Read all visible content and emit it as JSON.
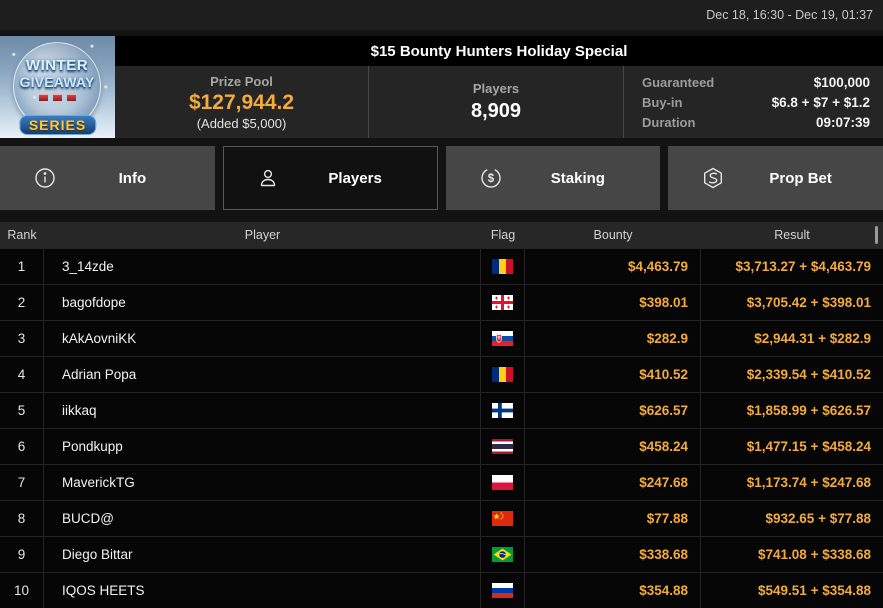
{
  "topbar": {
    "date_range": "Dec 18, 16:30 - Dec 19, 01:37"
  },
  "header": {
    "title": "$15 Bounty Hunters Holiday Special",
    "logo": {
      "line1": "WINTER",
      "line2": "GIVEAWAY",
      "line3": "SERIES"
    },
    "stats": {
      "prize_pool": {
        "label": "Prize Pool",
        "value": "$127,944.2",
        "added": "(Added $5,000)"
      },
      "players": {
        "label": "Players",
        "value": "8,909"
      },
      "details": [
        {
          "label": "Guaranteed",
          "value": "$100,000"
        },
        {
          "label": "Buy-in",
          "value": "$6.8 + $7 + $1.2"
        },
        {
          "label": "Duration",
          "value": "09:07:39"
        }
      ]
    }
  },
  "tabs": [
    {
      "label": "Info",
      "icon": "info-icon",
      "active": false
    },
    {
      "label": "Players",
      "icon": "players-icon",
      "active": true
    },
    {
      "label": "Staking",
      "icon": "staking-icon",
      "active": false
    },
    {
      "label": "Prop Bet",
      "icon": "prop-bet-icon",
      "active": false
    }
  ],
  "table": {
    "columns": [
      "Rank",
      "Player",
      "Flag",
      "Bounty",
      "Result"
    ],
    "rows": [
      {
        "rank": "1",
        "player": "3_14zde",
        "flag": "romania",
        "bounty": "$4,463.79",
        "result": "$3,713.27 + $4,463.79"
      },
      {
        "rank": "2",
        "player": "bagofdope",
        "flag": "georgia",
        "bounty": "$398.01",
        "result": "$3,705.42 + $398.01"
      },
      {
        "rank": "3",
        "player": "kAkAovniKK",
        "flag": "slovakia",
        "bounty": "$282.9",
        "result": "$2,944.31 + $282.9"
      },
      {
        "rank": "4",
        "player": "Adrian Popa",
        "flag": "romania",
        "bounty": "$410.52",
        "result": "$2,339.54 + $410.52"
      },
      {
        "rank": "5",
        "player": "iikkaq",
        "flag": "finland",
        "bounty": "$626.57",
        "result": "$1,858.99 + $626.57"
      },
      {
        "rank": "6",
        "player": "Pondkupp",
        "flag": "thailand",
        "bounty": "$458.24",
        "result": "$1,477.15 + $458.24"
      },
      {
        "rank": "7",
        "player": "MaverickTG",
        "flag": "poland",
        "bounty": "$247.68",
        "result": "$1,173.74 + $247.68"
      },
      {
        "rank": "8",
        "player": "BUCD@",
        "flag": "china",
        "bounty": "$77.88",
        "result": "$932.65 + $77.88"
      },
      {
        "rank": "9",
        "player": "Diego Bittar",
        "flag": "brazil",
        "bounty": "$338.68",
        "result": "$741.08 + $338.68"
      },
      {
        "rank": "10",
        "player": "IQOS HEETS",
        "flag": "russia",
        "bounty": "$354.88",
        "result": "$549.51 + $354.88"
      }
    ]
  },
  "colors": {
    "accent_gold": "#f2ab3d",
    "tab_inactive": "#464646",
    "row_bg": "#060606"
  }
}
